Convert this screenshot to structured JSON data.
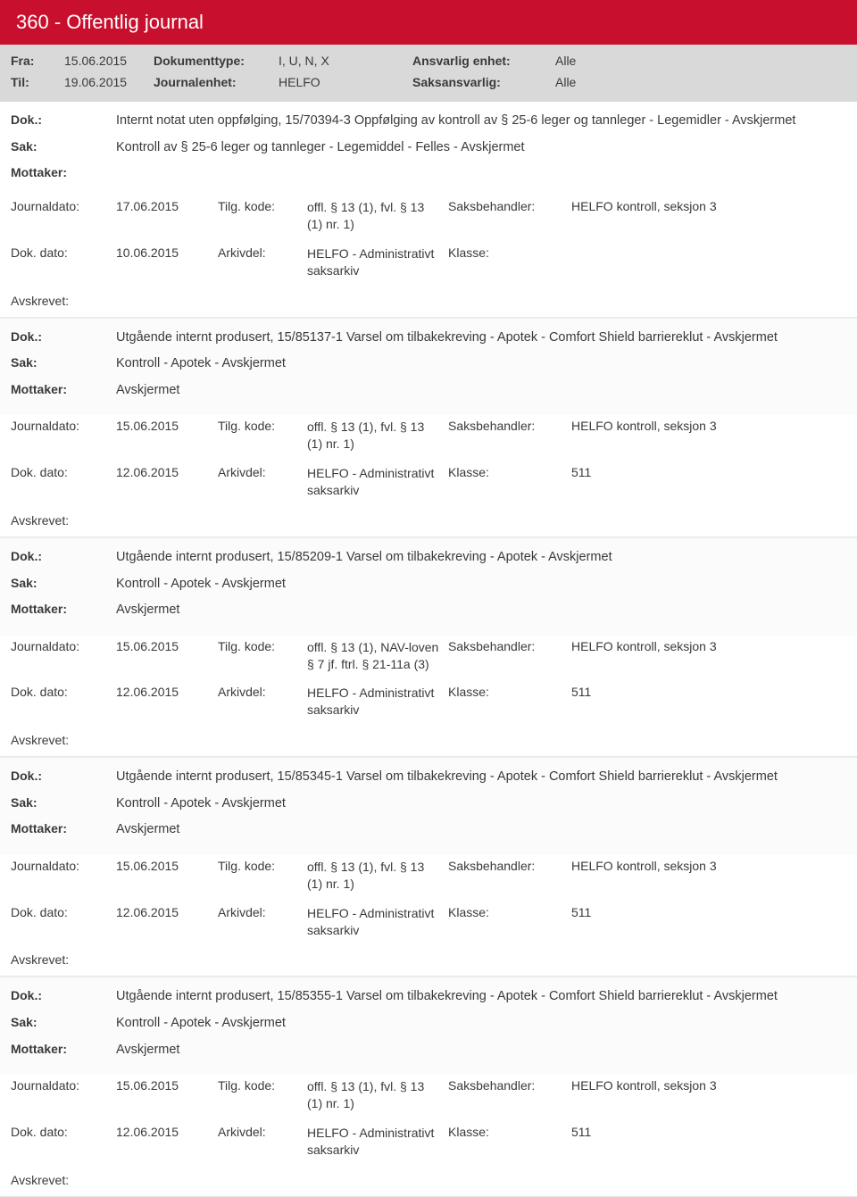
{
  "header": {
    "title": "360 - Offentlig journal"
  },
  "labels": {
    "fra": "Fra:",
    "til": "Til:",
    "dokumenttype": "Dokumenttype:",
    "journalenhet": "Journalenhet:",
    "ansvarlig_enhet": "Ansvarlig enhet:",
    "saksansvarlig": "Saksansvarlig:",
    "dok": "Dok.:",
    "sak": "Sak:",
    "mottaker": "Mottaker:",
    "journaldato": "Journaldato:",
    "tilg_kode": "Tilg. kode:",
    "saksbehandler": "Saksbehandler:",
    "dok_dato": "Dok. dato:",
    "arkivdel": "Arkivdel:",
    "klasse": "Klasse:",
    "avskrevet": "Avskrevet:"
  },
  "meta": {
    "fra": "15.06.2015",
    "til": "19.06.2015",
    "dokumenttype": "I, U, N, X",
    "journalenhet": "HELFO",
    "ansvarlig_enhet": "Alle",
    "saksansvarlig": "Alle"
  },
  "entries": [
    {
      "dok": "Internt notat uten oppfølging, 15/70394-3 Oppfølging av kontroll av § 25-6 leger og tannleger - Legemidler - Avskjermet",
      "sak": "Kontroll av § 25-6 leger og tannleger - Legemiddel - Felles - Avskjermet",
      "mottaker": "",
      "journaldato": "17.06.2015",
      "tilg_kode": "offl. § 13 (1), fvl. § 13 (1) nr. 1)",
      "saksbehandler": "HELFO kontroll, seksjon 3",
      "dok_dato": "10.06.2015",
      "arkivdel": "HELFO - Administrativt saksarkiv",
      "klasse": ""
    },
    {
      "dok": "Utgående internt produsert, 15/85137-1 Varsel om tilbakekreving - Apotek - Comfort Shield barriereklut - Avskjermet",
      "sak": "Kontroll - Apotek - Avskjermet",
      "mottaker": "Avskjermet",
      "journaldato": "15.06.2015",
      "tilg_kode": "offl. § 13 (1), fvl. § 13 (1) nr. 1)",
      "saksbehandler": "HELFO kontroll, seksjon 3",
      "dok_dato": "12.06.2015",
      "arkivdel": "HELFO - Administrativt saksarkiv",
      "klasse": "511"
    },
    {
      "dok": "Utgående internt produsert, 15/85209-1 Varsel om tilbakekreving - Apotek - Avskjermet",
      "sak": "Kontroll - Apotek - Avskjermet",
      "mottaker": "Avskjermet",
      "journaldato": "15.06.2015",
      "tilg_kode": "offl. § 13 (1), NAV-loven § 7 jf. ftrl. § 21-11a (3)",
      "saksbehandler": "HELFO kontroll, seksjon 3",
      "dok_dato": "12.06.2015",
      "arkivdel": "HELFO - Administrativt saksarkiv",
      "klasse": "511"
    },
    {
      "dok": "Utgående internt produsert, 15/85345-1 Varsel om tilbakekreving - Apotek  - Comfort Shield barriereklut - Avskjermet",
      "sak": "Kontroll - Apotek - Avskjermet",
      "mottaker": "Avskjermet",
      "journaldato": "15.06.2015",
      "tilg_kode": "offl. § 13 (1), fvl. § 13 (1) nr. 1)",
      "saksbehandler": "HELFO kontroll, seksjon 3",
      "dok_dato": "12.06.2015",
      "arkivdel": "HELFO - Administrativt saksarkiv",
      "klasse": "511"
    },
    {
      "dok": "Utgående internt produsert, 15/85355-1 Varsel om tilbakekreving - Apotek - Comfort Shield barriereklut - Avskjermet",
      "sak": "Kontroll - Apotek - Avskjermet",
      "mottaker": "Avskjermet",
      "journaldato": "15.06.2015",
      "tilg_kode": "offl. § 13 (1), fvl. § 13 (1) nr. 1)",
      "saksbehandler": "HELFO kontroll, seksjon 3",
      "dok_dato": "12.06.2015",
      "arkivdel": "HELFO - Administrativt saksarkiv",
      "klasse": "511"
    }
  ],
  "style": {
    "header_bg": "#c8102e",
    "header_fg": "#ffffff",
    "meta_bg": "#d9d9d9",
    "text_color": "#3a3a3a",
    "divider": "#e8e8e8",
    "alt_bg": "#fbfbfb",
    "font": "Segoe UI",
    "title_fontsize": 22,
    "body_fontsize": 14
  }
}
